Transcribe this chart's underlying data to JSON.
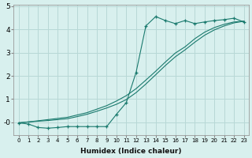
{
  "xlabel": "Humidex (Indice chaleur)",
  "bg_color": "#d8f0ee",
  "grid_color": "#b8d8d6",
  "line_color": "#1a7a6e",
  "xlim_min": -0.5,
  "xlim_max": 23.5,
  "ylim_min": -0.55,
  "ylim_max": 5.05,
  "yticks": [
    0,
    1,
    2,
    3,
    4,
    5
  ],
  "ytick_labels": [
    "-0",
    "1",
    "2",
    "3",
    "4",
    "5"
  ],
  "xticks": [
    0,
    1,
    2,
    3,
    4,
    5,
    6,
    7,
    8,
    9,
    10,
    11,
    12,
    13,
    14,
    15,
    16,
    17,
    18,
    19,
    20,
    21,
    22,
    23
  ],
  "series1_x": [
    0,
    1,
    2,
    3,
    4,
    5,
    6,
    7,
    8,
    9,
    10,
    11,
    12,
    13,
    14,
    15,
    16,
    17,
    18,
    19,
    20,
    21,
    22,
    23
  ],
  "series1_y": [
    -0.02,
    -0.07,
    -0.22,
    -0.25,
    -0.22,
    -0.18,
    -0.18,
    -0.18,
    -0.18,
    -0.18,
    0.35,
    0.85,
    2.15,
    4.15,
    4.55,
    4.38,
    4.25,
    4.38,
    4.25,
    4.32,
    4.38,
    4.42,
    4.48,
    4.32
  ],
  "series2_x": [
    0,
    1,
    2,
    3,
    4,
    5,
    6,
    7,
    8,
    9,
    10,
    11,
    12,
    13,
    14,
    15,
    16,
    17,
    18,
    19,
    20,
    21,
    22,
    23
  ],
  "series2_y": [
    -0.02,
    0.02,
    0.07,
    0.12,
    0.17,
    0.22,
    0.32,
    0.42,
    0.57,
    0.72,
    0.92,
    1.15,
    1.45,
    1.82,
    2.2,
    2.6,
    2.98,
    3.25,
    3.6,
    3.88,
    4.08,
    4.22,
    4.32,
    4.35
  ],
  "series3_x": [
    0,
    1,
    2,
    3,
    4,
    5,
    6,
    7,
    8,
    9,
    10,
    11,
    12,
    13,
    14,
    15,
    16,
    17,
    18,
    19,
    20,
    21,
    22,
    23
  ],
  "series3_y": [
    -0.02,
    0.02,
    0.05,
    0.08,
    0.12,
    0.16,
    0.25,
    0.35,
    0.48,
    0.62,
    0.78,
    0.98,
    1.28,
    1.65,
    2.05,
    2.45,
    2.82,
    3.12,
    3.45,
    3.75,
    3.98,
    4.15,
    4.28,
    4.35
  ]
}
